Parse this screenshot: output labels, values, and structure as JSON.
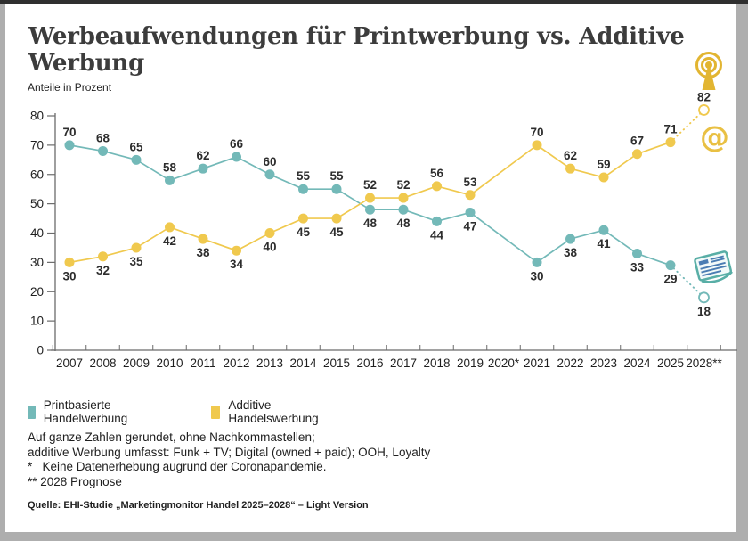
{
  "title": "Werbeaufwendungen für Printwerbung vs. Additive Werbung",
  "y_unit_label": "Anteile in Prozent",
  "legend": [
    {
      "label": "Printbasierte Handelwerbung",
      "color": "#73b9b8"
    },
    {
      "label": "Additive Handelswerbung",
      "color": "#f0c94e"
    }
  ],
  "footnotes": [
    "Auf ganze Zahlen gerundet, ohne Nachkommastellen;",
    "additive Werbung umfasst: Funk + TV; Digital (owned + paid); OOH, Loyalty",
    "*   Keine Datenerhebung augrund der Coronapandemie.",
    "** 2028 Prognose"
  ],
  "source": "Quelle: EHI-Studie „Marketingmonitor Handel 2025–2028“ – Light Version",
  "icons": {
    "broadcast_color": "#e2b531",
    "at_symbol": "@",
    "at_color": "#e9c043",
    "newspaper_color": "#58aea6",
    "newspaper_text_color": "#4a7db3"
  },
  "chart_data": {
    "type": "line",
    "title": "Werbeaufwendungen für Printwerbung vs. Additive Werbung",
    "ylabel": "Anteile in Prozent",
    "ylim": [
      0,
      80
    ],
    "yticks": [
      0,
      10,
      20,
      30,
      40,
      50,
      60,
      70,
      80
    ],
    "grid": false,
    "legend_position": "bottom-left",
    "categories": [
      "2007",
      "2008",
      "2009",
      "2010",
      "2011",
      "2012",
      "2013",
      "2014",
      "2015",
      "2016",
      "2017",
      "2018",
      "2019",
      "2020*",
      "2021",
      "2022",
      "2023",
      "2024",
      "2025",
      "2028**"
    ],
    "forecast_index": 19,
    "missing_data_note": "2020* keine Datenerhebung",
    "series": [
      {
        "name": "Printbasierte Handelwerbung",
        "color": "#73b9b8",
        "values": [
          70,
          68,
          65,
          58,
          62,
          66,
          60,
          55,
          55,
          48,
          48,
          44,
          47,
          null,
          30,
          38,
          41,
          33,
          29,
          18
        ]
      },
      {
        "name": "Additive Handelswerbung",
        "color": "#f0c94e",
        "values": [
          30,
          32,
          35,
          42,
          38,
          34,
          40,
          45,
          45,
          52,
          52,
          56,
          53,
          null,
          70,
          62,
          59,
          67,
          71,
          82
        ]
      }
    ]
  }
}
